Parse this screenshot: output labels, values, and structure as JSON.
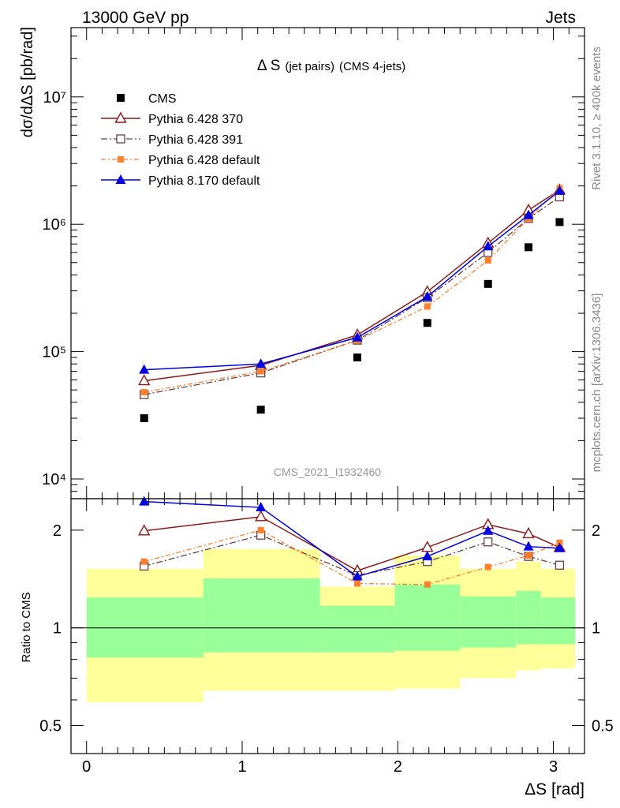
{
  "header": {
    "left": "13000 GeV pp",
    "right": "Jets"
  },
  "side_labels": {
    "rivet": "Rivet 3.1.10, ≥ 400k events",
    "mcplots": "mcplots.cern.ch [arXiv:1306.3436]"
  },
  "watermark": "CMS_2021_I1932460",
  "main_title_prefix": "Δ S",
  "main_title_small": "(jet pairs)",
  "main_title_suffix": "(CMS 4-jets)",
  "ratio_ylabel": "Ratio to CMS",
  "colors": {
    "cms": "#000000",
    "p370": "#8b1a1a",
    "p391": "#6b3f3f",
    "pdef": "#ff7f2a",
    "p8": "#0000e0",
    "band_yellow": "#ffff99",
    "band_green": "#99ff99"
  },
  "chart_data": [
    {
      "type": "scatter",
      "panel": "main",
      "ylabel": "dσ/dΔS [pb/rad]",
      "xlabel": "ΔS [rad]",
      "yscale": "log",
      "xlim": [
        -0.1,
        3.2
      ],
      "ylim": [
        7000,
        35000000
      ],
      "ytick_labels": [
        "10⁴",
        "10⁵",
        "10⁶",
        "10⁷"
      ],
      "ytick_values": [
        10000,
        100000,
        1000000,
        10000000
      ],
      "legend_position": "top-left",
      "series": [
        {
          "name": "CMS",
          "style": "square",
          "x": [
            0.37,
            1.12,
            1.74,
            2.19,
            2.58,
            2.84,
            3.04
          ],
          "y": [
            30000,
            35000,
            90000,
            168000,
            340000,
            660000,
            1040000
          ]
        },
        {
          "name": "Pythia 6.428 370",
          "style": "open-triangle",
          "x": [
            0.37,
            1.12,
            1.74,
            2.19,
            2.58,
            2.84,
            3.04
          ],
          "y": [
            59000,
            78000,
            135000,
            295000,
            710000,
            1290000,
            1860000
          ]
        },
        {
          "name": "Pythia 6.428 391",
          "style": "open-square",
          "x": [
            0.37,
            1.12,
            1.74,
            2.19,
            2.58,
            2.84,
            3.04
          ],
          "y": [
            46000,
            68000,
            123000,
            265000,
            600000,
            1110000,
            1640000
          ]
        },
        {
          "name": "Pythia 6.428 default",
          "style": "small-square",
          "x": [
            0.37,
            1.12,
            1.74,
            2.19,
            2.58,
            2.84,
            3.04
          ],
          "y": [
            48000,
            70000,
            122000,
            226000,
            520000,
            1110000,
            1920000
          ]
        },
        {
          "name": "Pythia 8.170 default",
          "style": "filled-triangle",
          "x": [
            0.37,
            1.12,
            1.74,
            2.19,
            2.58,
            2.84,
            3.04
          ],
          "y": [
            72000,
            80000,
            129000,
            270000,
            670000,
            1180000,
            1830000
          ]
        }
      ]
    },
    {
      "type": "line",
      "panel": "ratio",
      "ylabel": "Ratio to CMS",
      "xlabel": "ΔS [rad]",
      "yscale": "log",
      "xlim": [
        -0.1,
        3.2
      ],
      "ylim": [
        0.41,
        2.5
      ],
      "xtick_labels": [
        "0",
        "1",
        "2",
        "3"
      ],
      "xtick_values": [
        0,
        1,
        2,
        3
      ],
      "ytick_labels": [
        "0.5",
        "1",
        "2"
      ],
      "ytick_values": [
        0.5,
        1,
        2
      ],
      "bands": [
        {
          "x0": 0.0,
          "x1": 0.75,
          "yellow": [
            0.59,
            1.52
          ],
          "green": [
            0.81,
            1.24
          ]
        },
        {
          "x0": 0.75,
          "x1": 1.5,
          "yellow": [
            0.64,
            1.75
          ],
          "green": [
            0.84,
            1.42
          ]
        },
        {
          "x0": 1.5,
          "x1": 1.98,
          "yellow": [
            0.64,
            1.34
          ],
          "green": [
            0.84,
            1.17
          ]
        },
        {
          "x0": 1.98,
          "x1": 2.4,
          "yellow": [
            0.65,
            1.67
          ],
          "green": [
            0.85,
            1.36
          ]
        },
        {
          "x0": 2.4,
          "x1": 2.76,
          "yellow": [
            0.7,
            1.52
          ],
          "green": [
            0.87,
            1.25
          ]
        },
        {
          "x0": 2.76,
          "x1": 2.92,
          "yellow": [
            0.74,
            1.6
          ],
          "green": [
            0.89,
            1.3
          ]
        },
        {
          "x0": 2.92,
          "x1": 3.14,
          "yellow": [
            0.75,
            1.52
          ],
          "green": [
            0.89,
            1.24
          ]
        }
      ],
      "series": [
        {
          "name": "Pythia 6.428 370",
          "x": [
            0.37,
            1.12,
            1.74,
            2.19,
            2.58,
            2.84,
            3.04
          ],
          "y": [
            1.99,
            2.2,
            1.5,
            1.77,
            2.08,
            1.95,
            1.77
          ]
        },
        {
          "name": "Pythia 6.428 391",
          "x": [
            0.37,
            1.12,
            1.74,
            2.19,
            2.58,
            2.84,
            3.04
          ],
          "y": [
            1.55,
            1.93,
            1.45,
            1.6,
            1.84,
            1.66,
            1.56
          ]
        },
        {
          "name": "Pythia 6.428 default",
          "x": [
            0.37,
            1.12,
            1.74,
            2.19,
            2.58,
            2.84,
            3.04
          ],
          "y": [
            1.6,
            2.0,
            1.37,
            1.36,
            1.54,
            1.67,
            1.83
          ]
        },
        {
          "name": "Pythia 8.170 default",
          "x": [
            0.37,
            1.12,
            1.74,
            2.19,
            2.58,
            2.84,
            3.04
          ],
          "y": [
            2.45,
            2.35,
            1.44,
            1.66,
            1.99,
            1.78,
            1.76
          ]
        }
      ]
    }
  ]
}
